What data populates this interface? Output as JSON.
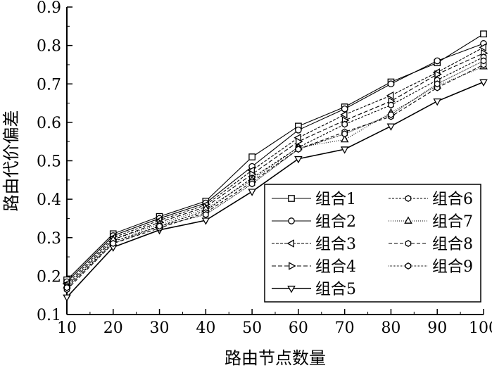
{
  "chart_data": {
    "type": "line",
    "xlabel": "路由节点数量",
    "ylabel": "路由代价偏差",
    "x": [
      10,
      20,
      30,
      40,
      50,
      60,
      70,
      80,
      90,
      100
    ],
    "xlim": [
      10,
      100
    ],
    "ylim": [
      0.1,
      0.9
    ],
    "xticks": [
      "10",
      "20",
      "30",
      "40",
      "50",
      "60",
      "70",
      "80",
      "90",
      "100"
    ],
    "yticks": [
      "0.1",
      "0.2",
      "0.3",
      "0.4",
      "0.5",
      "0.6",
      "0.7",
      "0.8",
      "0.9"
    ],
    "legend_position": "center-right",
    "grid": false,
    "series": [
      {
        "name": "组合1",
        "marker": "square",
        "dash": "",
        "values": [
          0.19,
          0.31,
          0.355,
          0.395,
          0.51,
          0.59,
          0.64,
          0.705,
          0.755,
          0.83
        ]
      },
      {
        "name": "组合2",
        "marker": "circle",
        "dash": "",
        "values": [
          0.185,
          0.305,
          0.35,
          0.39,
          0.485,
          0.58,
          0.635,
          0.7,
          0.76,
          0.805
        ]
      },
      {
        "name": "组合3",
        "marker": "triangle-left",
        "dash": "4,2",
        "values": [
          0.18,
          0.3,
          0.345,
          0.385,
          0.475,
          0.56,
          0.62,
          0.67,
          0.73,
          0.795
        ]
      },
      {
        "name": "组合4",
        "marker": "triangle-right",
        "dash": "6,3",
        "values": [
          0.175,
          0.295,
          0.34,
          0.38,
          0.465,
          0.55,
          0.605,
          0.655,
          0.725,
          0.78
        ]
      },
      {
        "name": "组合5",
        "marker": "triangle-down",
        "dash": "",
        "values": [
          0.145,
          0.275,
          0.32,
          0.345,
          0.42,
          0.505,
          0.53,
          0.59,
          0.655,
          0.705
        ]
      },
      {
        "name": "组合6",
        "marker": "hexagon",
        "dash": "3,2",
        "values": [
          0.17,
          0.29,
          0.33,
          0.37,
          0.455,
          0.535,
          0.595,
          0.645,
          0.71,
          0.77
        ]
      },
      {
        "name": "组合7",
        "marker": "triangle-up",
        "dash": "1,2",
        "values": [
          0.175,
          0.295,
          0.335,
          0.375,
          0.45,
          0.535,
          0.555,
          0.625,
          0.695,
          0.745
        ]
      },
      {
        "name": "组合8",
        "marker": "hexagon",
        "dash": "5,3",
        "values": [
          0.165,
          0.285,
          0.325,
          0.365,
          0.445,
          0.53,
          0.575,
          0.615,
          0.69,
          0.75
        ]
      },
      {
        "name": "组合9",
        "marker": "hexagon",
        "dash": "1,1",
        "values": [
          0.17,
          0.285,
          0.33,
          0.36,
          0.44,
          0.53,
          0.57,
          0.62,
          0.7,
          0.76
        ]
      }
    ]
  }
}
